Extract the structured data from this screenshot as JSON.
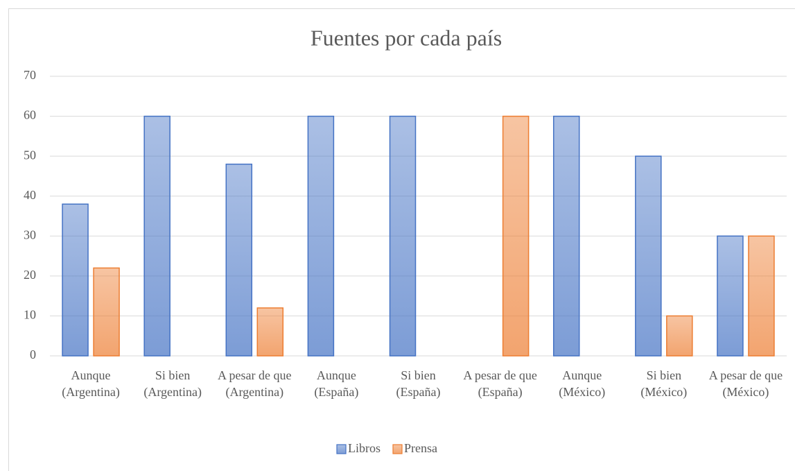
{
  "chart_data": {
    "type": "bar",
    "title": "Fuentes por cada país",
    "categories": [
      "Aunque (Argentina)",
      "Si bien (Argentina)",
      "A pesar de que (Argentina)",
      "Aunque (España)",
      "Si bien (España)",
      "A pesar de que (España)",
      "Aunque (México)",
      "Si bien (México)",
      "A pesar de que (México)"
    ],
    "series": [
      {
        "name": "Libros",
        "color": "#4472c4",
        "values": [
          38,
          60,
          48,
          60,
          60,
          0,
          60,
          50,
          30
        ]
      },
      {
        "name": "Prensa",
        "color": "#ed7d31",
        "values": [
          22,
          0,
          12,
          0,
          0,
          60,
          0,
          10,
          30
        ]
      }
    ],
    "ylim": [
      0,
      70
    ],
    "yticks": [
      0,
      10,
      20,
      30,
      40,
      50,
      60,
      70
    ],
    "grid": true,
    "legend": "bottom"
  }
}
